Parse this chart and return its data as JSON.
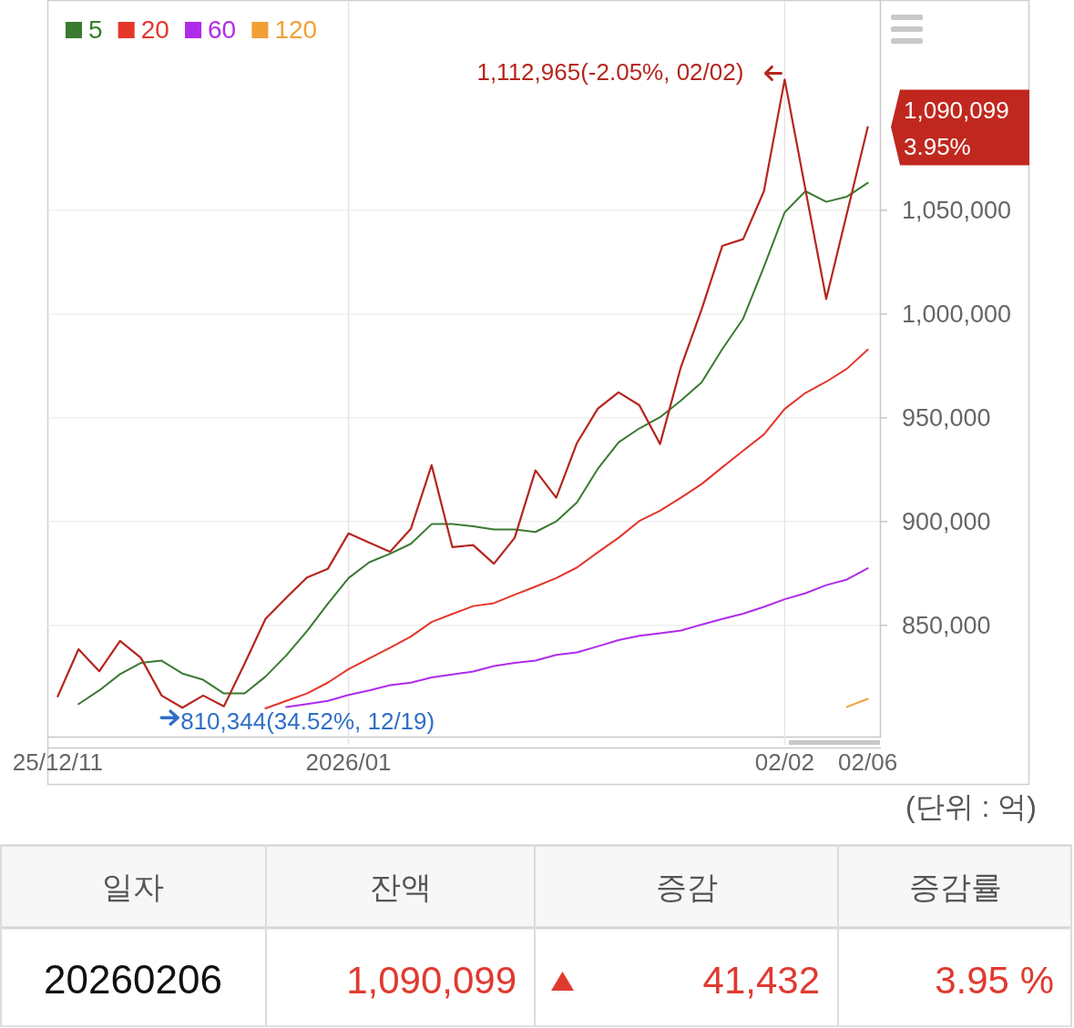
{
  "chart_data": [
    {
      "type": "line",
      "categories": [
        "25/12/11",
        null,
        null,
        null,
        null,
        null,
        null,
        null,
        null,
        null,
        null,
        null,
        null,
        null,
        "2026/01",
        null,
        null,
        null,
        null,
        null,
        null,
        null,
        null,
        null,
        null,
        null,
        null,
        null,
        null,
        null,
        null,
        null,
        null,
        null,
        null,
        "02/02",
        null,
        null,
        null,
        "02/06"
      ],
      "series": [
        {
          "name": "5",
          "color": "#3a7a31",
          "values": [
            null,
            812100,
            818700,
            826500,
            831900,
            833000,
            826800,
            823800,
            817200,
            817200,
            825300,
            835500,
            847200,
            860400,
            872800,
            880400,
            884500,
            889300,
            898800,
            898800,
            897700,
            896200,
            896200,
            895000,
            900100,
            909300,
            925400,
            938200,
            944900,
            950300,
            958300,
            967100,
            983200,
            997800,
            1022700,
            1049000,
            1059200,
            1054100,
            1056600,
            1063200
          ]
        },
        {
          "name": "20",
          "color": "#e5352b",
          "values": [
            null,
            null,
            null,
            null,
            null,
            null,
            null,
            null,
            null,
            null,
            810000,
            813600,
            817200,
            822400,
            828900,
            834100,
            839200,
            844600,
            851600,
            855500,
            859300,
            860700,
            864800,
            868700,
            872800,
            877900,
            885200,
            892200,
            900300,
            905300,
            911500,
            918100,
            926200,
            934200,
            942000,
            954300,
            962000,
            967400,
            973700,
            982900
          ]
        },
        {
          "name": "60",
          "color": "#b02be9",
          "values": [
            null,
            null,
            null,
            null,
            null,
            null,
            null,
            null,
            null,
            null,
            null,
            810700,
            812100,
            813600,
            816500,
            818700,
            821200,
            822400,
            824900,
            826300,
            827800,
            830400,
            831900,
            833000,
            835800,
            837000,
            839900,
            842900,
            845000,
            846200,
            847500,
            850400,
            853100,
            855600,
            858900,
            862600,
            865500,
            869400,
            872100,
            877500
          ]
        },
        {
          "name": "120",
          "color": "#f0a035",
          "values": [
            null,
            null,
            null,
            null,
            null,
            null,
            null,
            null,
            null,
            null,
            null,
            null,
            null,
            null,
            null,
            null,
            null,
            null,
            null,
            null,
            null,
            null,
            null,
            null,
            null,
            null,
            null,
            null,
            null,
            null,
            null,
            null,
            null,
            null,
            null,
            null,
            null,
            null,
            810700,
            814600
          ]
        },
        {
          "color": "#b5261e",
          "values": [
            815800,
            838500,
            827900,
            842500,
            834400,
            816200,
            810300,
            816200,
            811000,
            831600,
            853100,
            863300,
            873100,
            877200,
            894300,
            889900,
            885500,
            896500,
            927200,
            887700,
            888700,
            879700,
            892200,
            924700,
            911500,
            937900,
            954400,
            962300,
            956100,
            937400,
            974400,
            1002200,
            1032900,
            1036100,
            1059200,
            1113000,
            1060000,
            1007300,
            1048700,
            1090100
          ]
        }
      ],
      "ylim": [
        796400,
        1150900
      ],
      "yticks": [
        {
          "value": 850000,
          "label": "850,000"
        },
        {
          "value": 900000,
          "label": "900,000"
        },
        {
          "value": 950000,
          "label": "950,000"
        },
        {
          "value": 1000000,
          "label": "1,000,000"
        },
        {
          "value": 1050000,
          "label": "1,050,000"
        }
      ],
      "grid": "y",
      "legend": "top left",
      "ref_lines": [
        {
          "axis": "x",
          "value": "2026/01",
          "color": "#e6e6e6"
        },
        {
          "axis": "x",
          "value": "02/02",
          "color": "#e6e6e6"
        }
      ],
      "annotations": [
        {
          "text": "1,112,965(-2.05%, 02/02)",
          "x": "02/02",
          "y": 1112965
        },
        {
          "text": "810,344(34.52%, 12/19)",
          "y": 810344
        },
        "1,090,099",
        "3.95%",
        "(단위 : 억)"
      ]
    },
    {
      "type": "other",
      "categories": [
        "일자",
        "잔액",
        "증감",
        "증감률"
      ],
      "annotations": [
        "20260206",
        "1,090,099",
        "41,432",
        "3.95 %"
      ]
    }
  ]
}
